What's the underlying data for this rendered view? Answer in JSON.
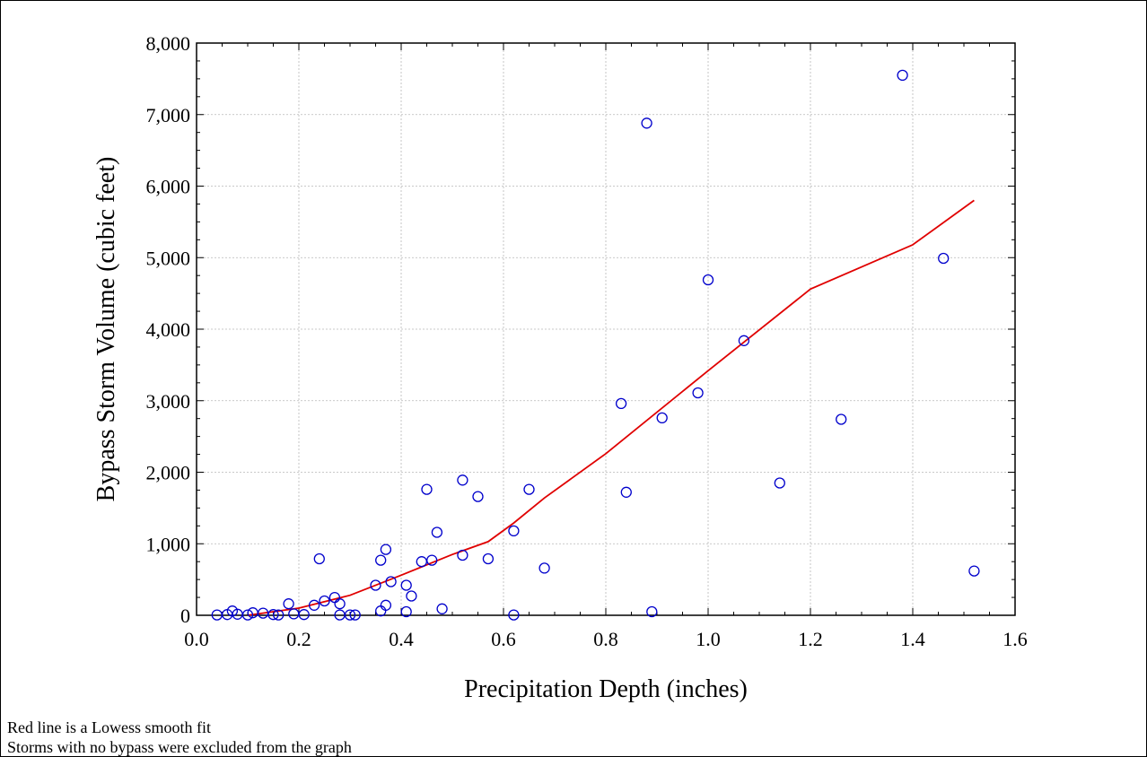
{
  "chart_data": {
    "type": "scatter",
    "xlabel": "Precipitation Depth (inches)",
    "ylabel": "Bypass Storm Volume (cubic feet)",
    "xlim": [
      0.0,
      1.6
    ],
    "ylim": [
      0,
      8000
    ],
    "x_ticks": [
      0.0,
      0.2,
      0.4,
      0.6,
      0.8,
      1.0,
      1.2,
      1.4,
      1.6
    ],
    "x_tick_labels": [
      "0.0",
      "0.2",
      "0.4",
      "0.6",
      "0.8",
      "1.0",
      "1.2",
      "1.4",
      "1.6"
    ],
    "y_ticks": [
      0,
      1000,
      2000,
      3000,
      4000,
      5000,
      6000,
      7000,
      8000
    ],
    "y_tick_labels": [
      "0",
      "1,000",
      "2,000",
      "3,000",
      "4,000",
      "5,000",
      "6,000",
      "7,000",
      "8,000"
    ],
    "grid": true,
    "marker_color": "#0000cc",
    "fit_line_color": "#e00000",
    "points": [
      [
        0.04,
        5
      ],
      [
        0.06,
        10
      ],
      [
        0.07,
        60
      ],
      [
        0.08,
        15
      ],
      [
        0.1,
        5
      ],
      [
        0.11,
        35
      ],
      [
        0.13,
        30
      ],
      [
        0.15,
        10
      ],
      [
        0.16,
        5
      ],
      [
        0.18,
        160
      ],
      [
        0.19,
        20
      ],
      [
        0.21,
        10
      ],
      [
        0.23,
        140
      ],
      [
        0.24,
        790
      ],
      [
        0.25,
        200
      ],
      [
        0.27,
        250
      ],
      [
        0.28,
        160
      ],
      [
        0.28,
        5
      ],
      [
        0.3,
        5
      ],
      [
        0.31,
        5
      ],
      [
        0.35,
        420
      ],
      [
        0.36,
        770
      ],
      [
        0.36,
        60
      ],
      [
        0.37,
        920
      ],
      [
        0.37,
        140
      ],
      [
        0.38,
        470
      ],
      [
        0.41,
        420
      ],
      [
        0.41,
        50
      ],
      [
        0.42,
        270
      ],
      [
        0.44,
        750
      ],
      [
        0.45,
        1760
      ],
      [
        0.46,
        770
      ],
      [
        0.47,
        1160
      ],
      [
        0.48,
        90
      ],
      [
        0.52,
        1890
      ],
      [
        0.52,
        840
      ],
      [
        0.55,
        1660
      ],
      [
        0.57,
        790
      ],
      [
        0.62,
        1180
      ],
      [
        0.62,
        5
      ],
      [
        0.65,
        1760
      ],
      [
        0.68,
        660
      ],
      [
        0.83,
        2960
      ],
      [
        0.84,
        1720
      ],
      [
        0.88,
        6880
      ],
      [
        0.89,
        50
      ],
      [
        0.91,
        2760
      ],
      [
        0.98,
        3110
      ],
      [
        1.0,
        4690
      ],
      [
        1.07,
        3840
      ],
      [
        1.14,
        1850
      ],
      [
        1.26,
        2740
      ],
      [
        1.38,
        7550
      ],
      [
        1.46,
        4990
      ],
      [
        1.52,
        620
      ]
    ],
    "fit_line": [
      [
        0.1,
        0
      ],
      [
        0.2,
        100
      ],
      [
        0.3,
        280
      ],
      [
        0.4,
        560
      ],
      [
        0.5,
        850
      ],
      [
        0.57,
        1030
      ],
      [
        0.62,
        1290
      ],
      [
        0.68,
        1640
      ],
      [
        0.8,
        2260
      ],
      [
        1.0,
        3420
      ],
      [
        1.2,
        4560
      ],
      [
        1.4,
        5180
      ],
      [
        1.52,
        5800
      ]
    ]
  },
  "notes": {
    "line1": "Red line is a Lowess smooth fit",
    "line2": "Storms with no bypass were excluded from the graph"
  }
}
